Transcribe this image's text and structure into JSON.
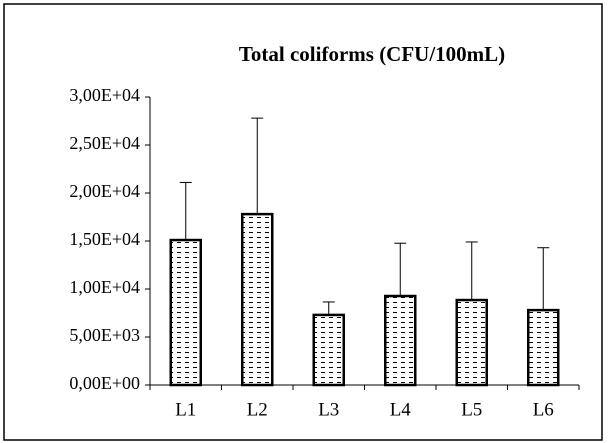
{
  "chart_data": {
    "type": "bar",
    "title": "Total coliforms  (CFU/100mL)",
    "categories": [
      "L1",
      "L2",
      "L3",
      "L4",
      "L5",
      "L6"
    ],
    "values": [
      15100,
      17800,
      7300,
      9270,
      8850,
      7800
    ],
    "errors": [
      6000,
      10000,
      1350,
      5500,
      6050,
      6500
    ],
    "color": "#000000",
    "ylim": [
      0,
      30000
    ],
    "yticks": [
      {
        "value": 0,
        "label": "0,00E+00"
      },
      {
        "value": 5000,
        "label": "5,00E+03"
      },
      {
        "value": 10000,
        "label": "1,00E+04"
      },
      {
        "value": 15000,
        "label": "1,50E+04"
      },
      {
        "value": 20000,
        "label": "2,00E+04"
      },
      {
        "value": 25000,
        "label": "2,50E+04"
      },
      {
        "value": 30000,
        "label": "3,00E+04"
      }
    ],
    "grid": false
  }
}
